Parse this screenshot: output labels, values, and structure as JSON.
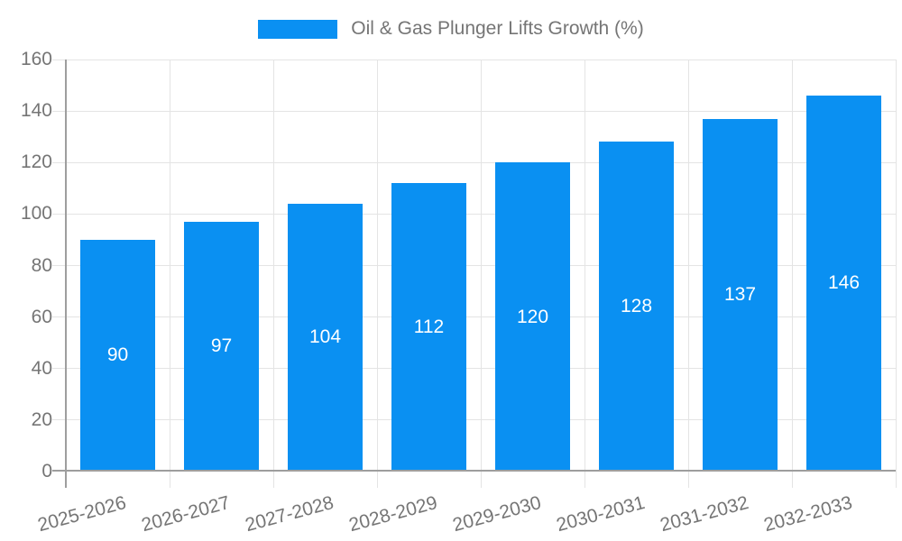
{
  "legend": {
    "label": "Oil & Gas Plunger Lifts Growth (%)"
  },
  "colors": {
    "bar": "#0a90f2",
    "value_label": "#ffffff",
    "axis_text": "#757575",
    "grid": "#e4e4e4",
    "axis_line": "#9e9e9e",
    "background": "#ffffff"
  },
  "chart_data": {
    "type": "bar",
    "title": "Oil & Gas Plunger Lifts Growth (%)",
    "categories": [
      "2025-2026",
      "2026-2027",
      "2027-2028",
      "2028-2029",
      "2029-2030",
      "2030-2031",
      "2031-2032",
      "2032-2033"
    ],
    "values": [
      90,
      97,
      104,
      112,
      120,
      128,
      137,
      146
    ],
    "series_name": "Oil & Gas Plunger Lifts Growth (%)",
    "xlabel": "",
    "ylabel": "",
    "ylim": [
      0,
      160
    ],
    "yticks": [
      0,
      20,
      40,
      60,
      80,
      100,
      120,
      140,
      160
    ],
    "grid": true,
    "legend_position": "top",
    "value_labels_inside_bars": true,
    "x_label_rotation_deg": -15
  }
}
